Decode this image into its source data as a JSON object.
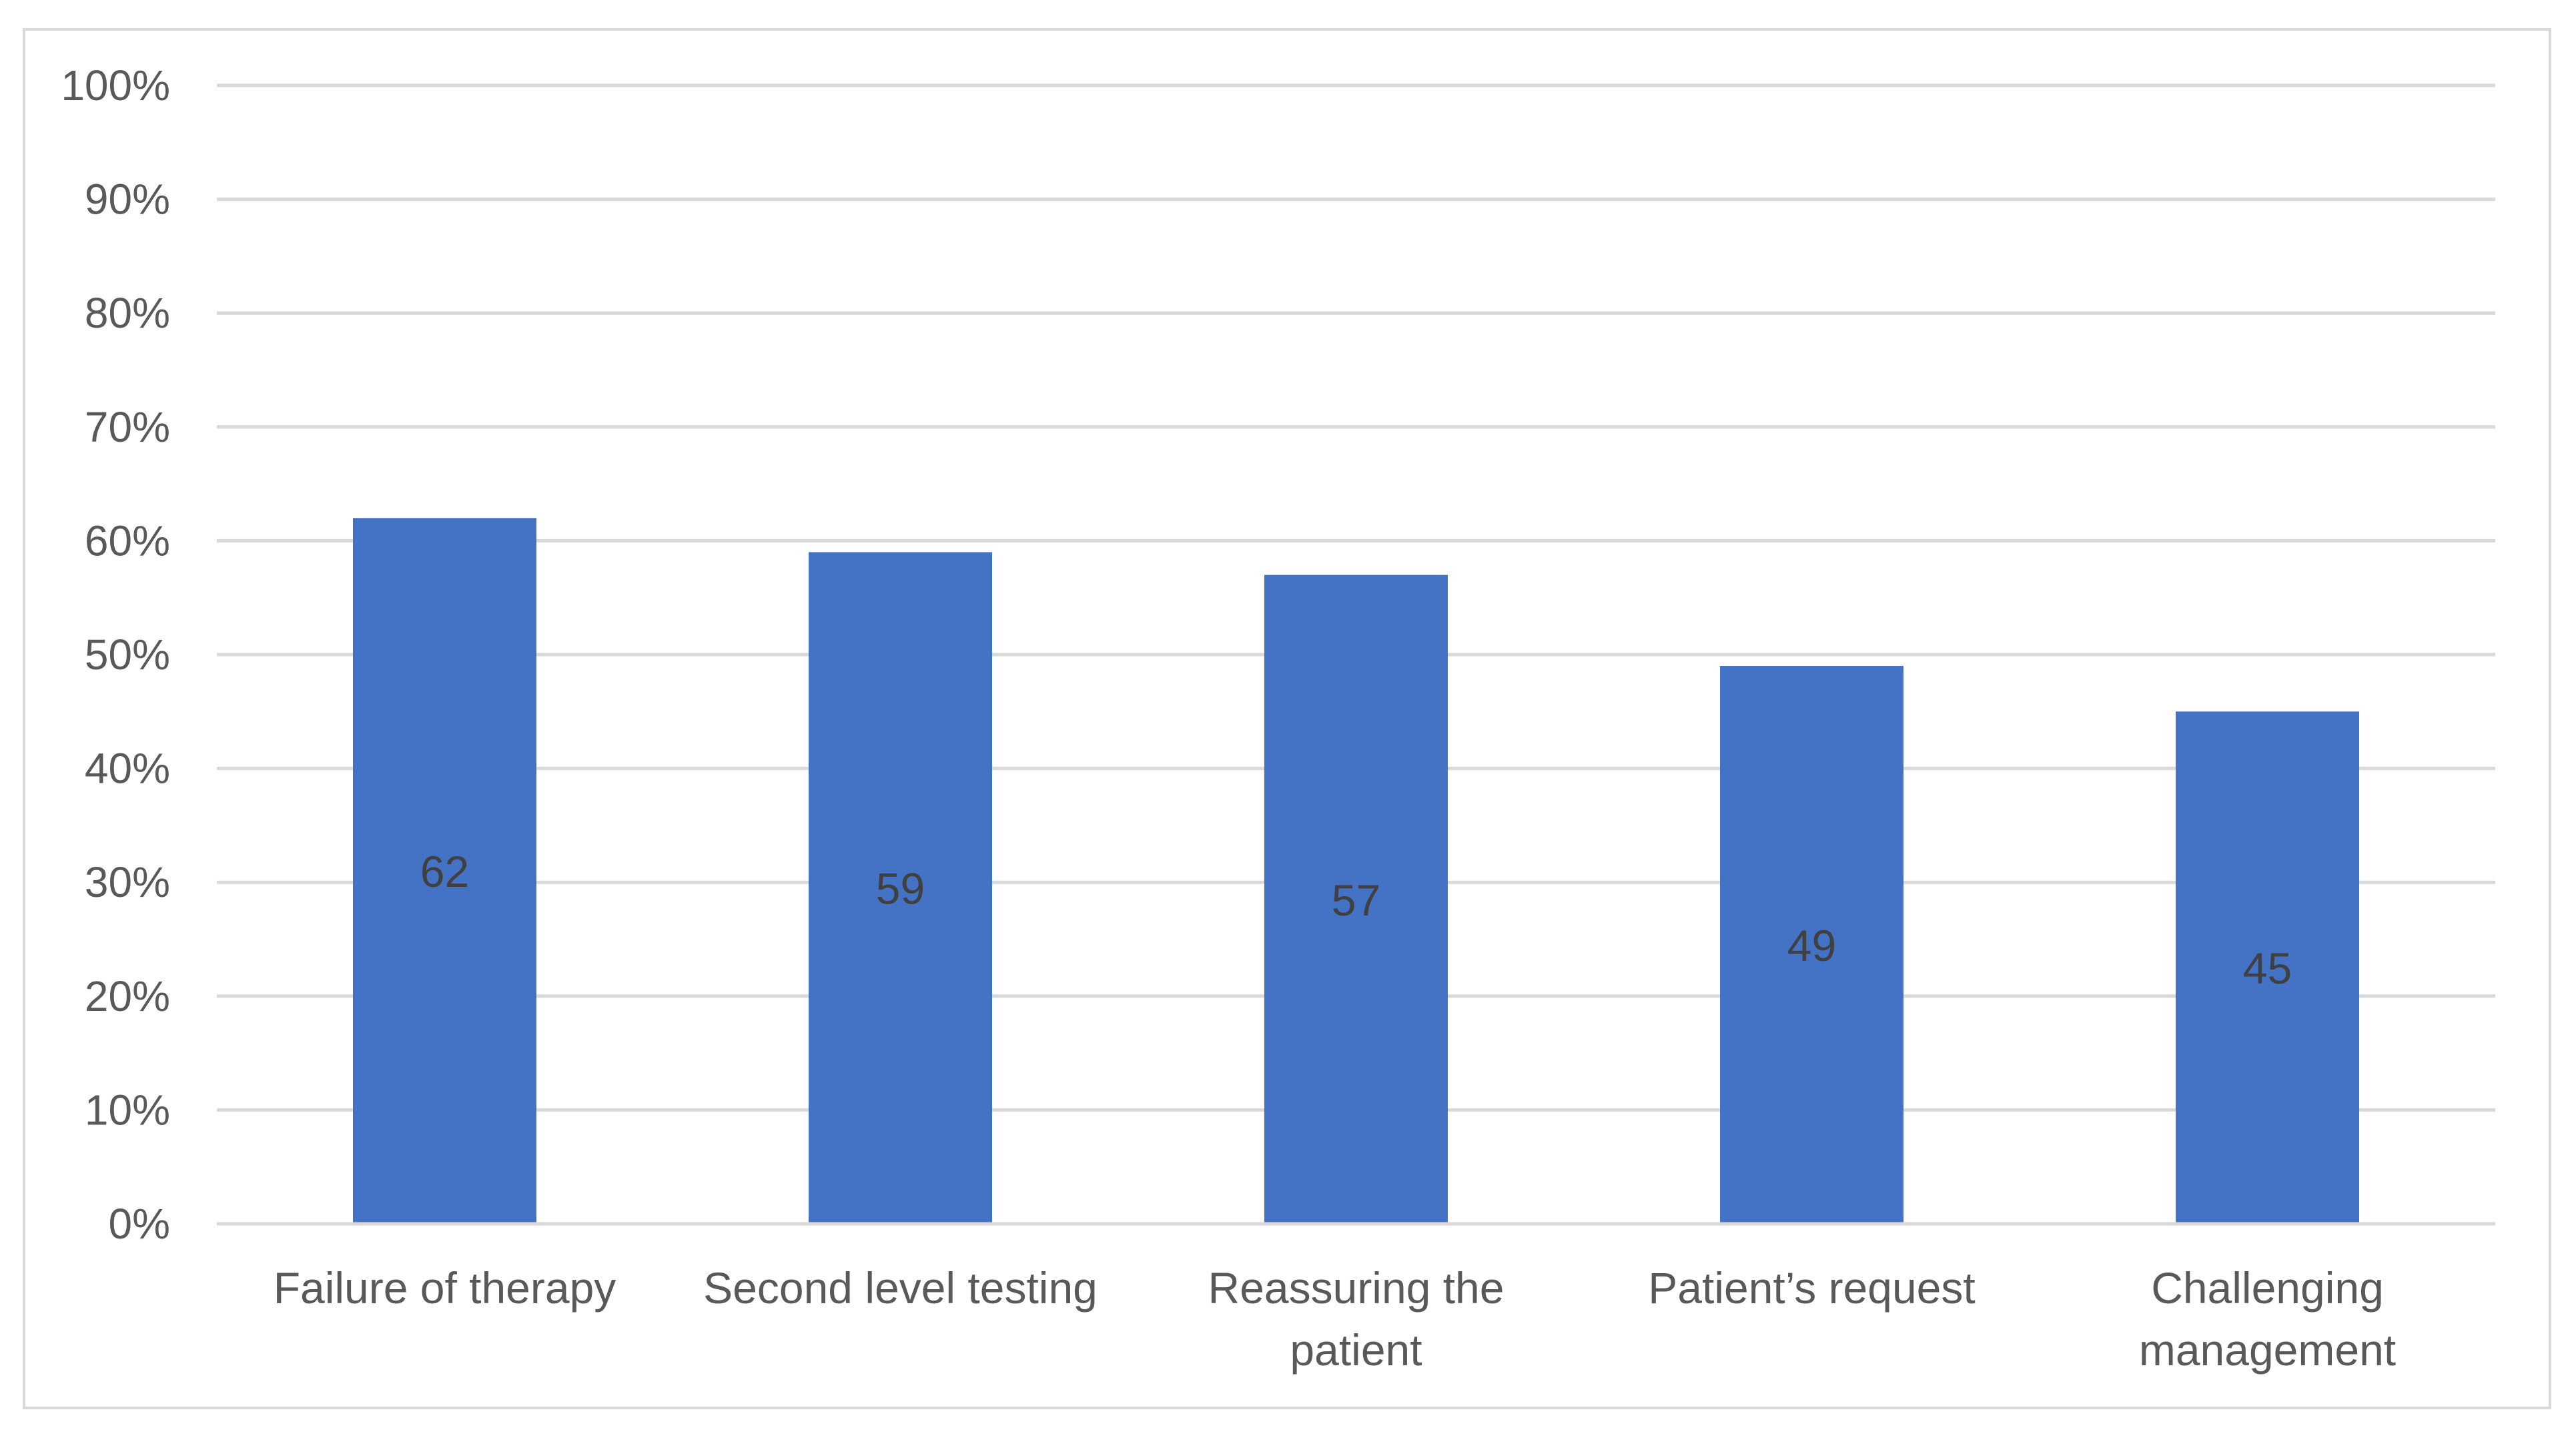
{
  "chart_data": {
    "type": "bar",
    "title": "",
    "xlabel": "",
    "ylabel": "",
    "categories": [
      [
        "Failure of therapy"
      ],
      [
        "Second level testing"
      ],
      [
        "Reassuring the",
        "patient"
      ],
      [
        "Patient’s request"
      ],
      [
        "Challenging",
        "management"
      ]
    ],
    "values": [
      62,
      59,
      57,
      49,
      45
    ],
    "data_labels": [
      "62",
      "59",
      "57",
      "49",
      "45"
    ],
    "ylim": [
      0,
      100
    ],
    "yticks": [
      0,
      10,
      20,
      30,
      40,
      50,
      60,
      70,
      80,
      90,
      100
    ],
    "ytick_labels": [
      "0%",
      "10%",
      "20%",
      "30%",
      "40%",
      "50%",
      "60%",
      "70%",
      "80%",
      "90%",
      "100%"
    ],
    "grid": true,
    "legend": "none",
    "colors": {
      "bar": "#4472c4",
      "gridline": "#d9d9d9",
      "axis": "#d9d9d9",
      "tick_text": "#595959",
      "data_label_text": "#404040"
    }
  }
}
